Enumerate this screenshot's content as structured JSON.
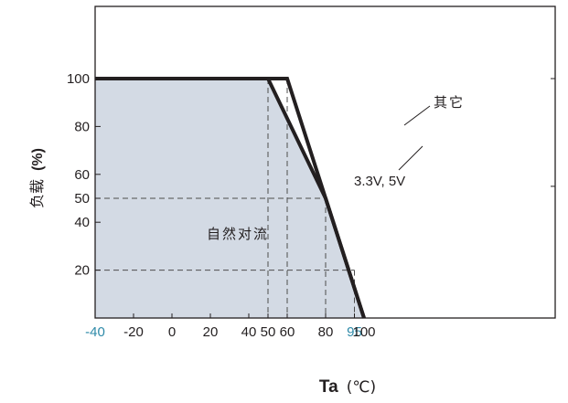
{
  "chart_data": {
    "type": "area",
    "xlabel": "Ta",
    "xlabel_unit": "(℃)",
    "ylabel": "负载",
    "ylabel_unit": "(%)",
    "xlim": [
      -40,
      105
    ],
    "ylim": [
      0,
      125
    ],
    "x_ticks": [
      {
        "value": -40,
        "label": "-40",
        "highlight": true
      },
      {
        "value": -20,
        "label": "-20",
        "highlight": false
      },
      {
        "value": 0,
        "label": "0",
        "highlight": false
      },
      {
        "value": 20,
        "label": "20",
        "highlight": false
      },
      {
        "value": 40,
        "label": "40",
        "highlight": false
      },
      {
        "value": 50,
        "label": "50",
        "highlight": false
      },
      {
        "value": 60,
        "label": "60",
        "highlight": false
      },
      {
        "value": 80,
        "label": "80",
        "highlight": false
      },
      {
        "value": 95,
        "label": "95",
        "highlight": true
      },
      {
        "value": 100,
        "label": "100",
        "highlight": false
      }
    ],
    "y_ticks": [
      {
        "value": 20,
        "label": "20"
      },
      {
        "value": 40,
        "label": "40"
      },
      {
        "value": 50,
        "label": "50"
      },
      {
        "value": 60,
        "label": "60"
      },
      {
        "value": 80,
        "label": "80"
      },
      {
        "value": 100,
        "label": "100"
      }
    ],
    "series": [
      {
        "name": "3.3V, 5V",
        "x": [
          -40,
          50,
          80,
          100
        ],
        "y": [
          100,
          100,
          50,
          0
        ]
      },
      {
        "name": "其它",
        "x": [
          -40,
          60,
          80,
          100
        ],
        "y": [
          100,
          100,
          50,
          0
        ]
      }
    ],
    "area_label": "自然对流",
    "grid": "dashed guide lines at x = 50, 60, 80, 95 and y = 50, 20",
    "colors": {
      "fill": "#d3dae4",
      "line": "#231f20",
      "guide": "#4d4d4d",
      "highlight_tick": "#2e8aa8"
    }
  }
}
